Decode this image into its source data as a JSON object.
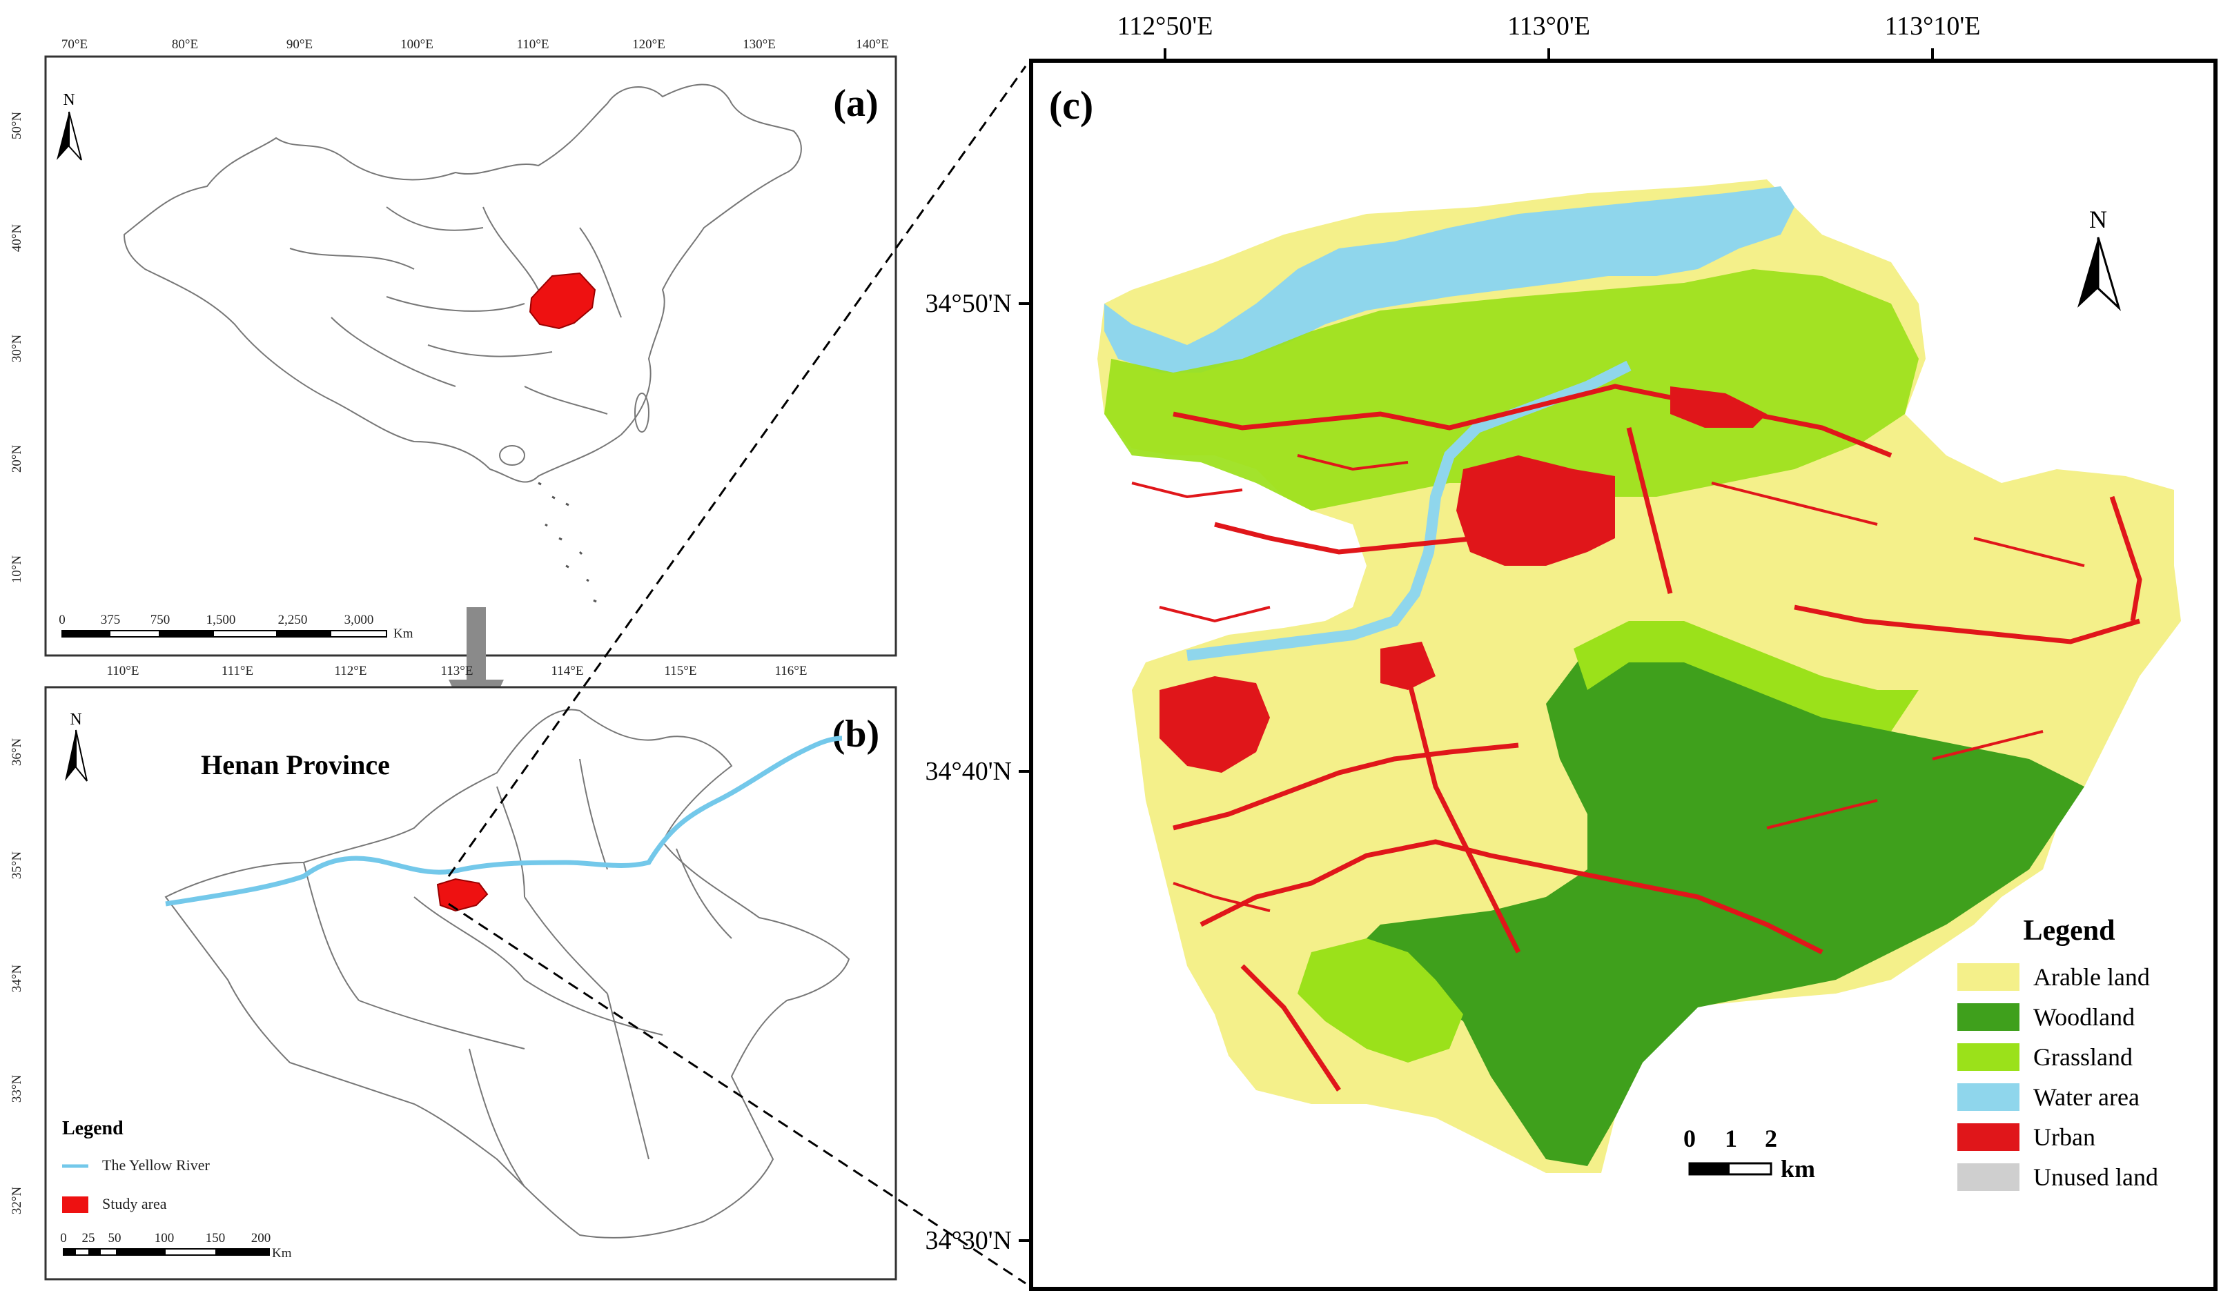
{
  "panel_a": {
    "label": "(a)",
    "north": "N",
    "lon_ticks": [
      "70°E",
      "80°E",
      "90°E",
      "100°E",
      "110°E",
      "120°E",
      "130°E",
      "140°E"
    ],
    "lat_ticks": [
      "50°N",
      "40°N",
      "30°N",
      "20°N",
      "10°N"
    ],
    "scale_ticks": [
      "0",
      "375",
      "750",
      "1,500",
      "2,250",
      "3,000"
    ],
    "scale_unit": "Km"
  },
  "panel_b": {
    "label": "(b)",
    "north": "N",
    "title": "Henan Province",
    "lon_ticks": [
      "110°E",
      "111°E",
      "112°E",
      "113°E",
      "114°E",
      "115°E",
      "116°E"
    ],
    "lat_ticks": [
      "36°N",
      "35°N",
      "34°N",
      "33°N",
      "32°N"
    ],
    "legend_title": "Legend",
    "legend_items": [
      "The Yellow River",
      "Study area"
    ],
    "scale_ticks": [
      "0",
      "25",
      "50",
      "100",
      "150",
      "200"
    ],
    "scale_unit": "Km"
  },
  "panel_c": {
    "label": "(c)",
    "north": "N",
    "lon_ticks": [
      "112°50'E",
      "113°0'E",
      "113°10'E"
    ],
    "lat_ticks": [
      "34°50'N",
      "34°40'N",
      "34°30'N"
    ],
    "legend_title": "Legend",
    "legend_items": [
      {
        "label": "Arable land",
        "color": "#f4f08a"
      },
      {
        "label": "Woodland",
        "color": "#3fa01c"
      },
      {
        "label": "Grassland",
        "color": "#9be11a"
      },
      {
        "label": "Water area",
        "color": "#8fd6ec"
      },
      {
        "label": "Urban",
        "color": "#e0161a"
      },
      {
        "label": "Unused land",
        "color": "#cfcfcf"
      }
    ],
    "scale_ticks": [
      "0",
      "1",
      "2"
    ],
    "scale_unit": "km"
  },
  "colors": {
    "study_area": "#ee1111",
    "river": "#73c8ea",
    "arrow": "#8a8a8a"
  }
}
